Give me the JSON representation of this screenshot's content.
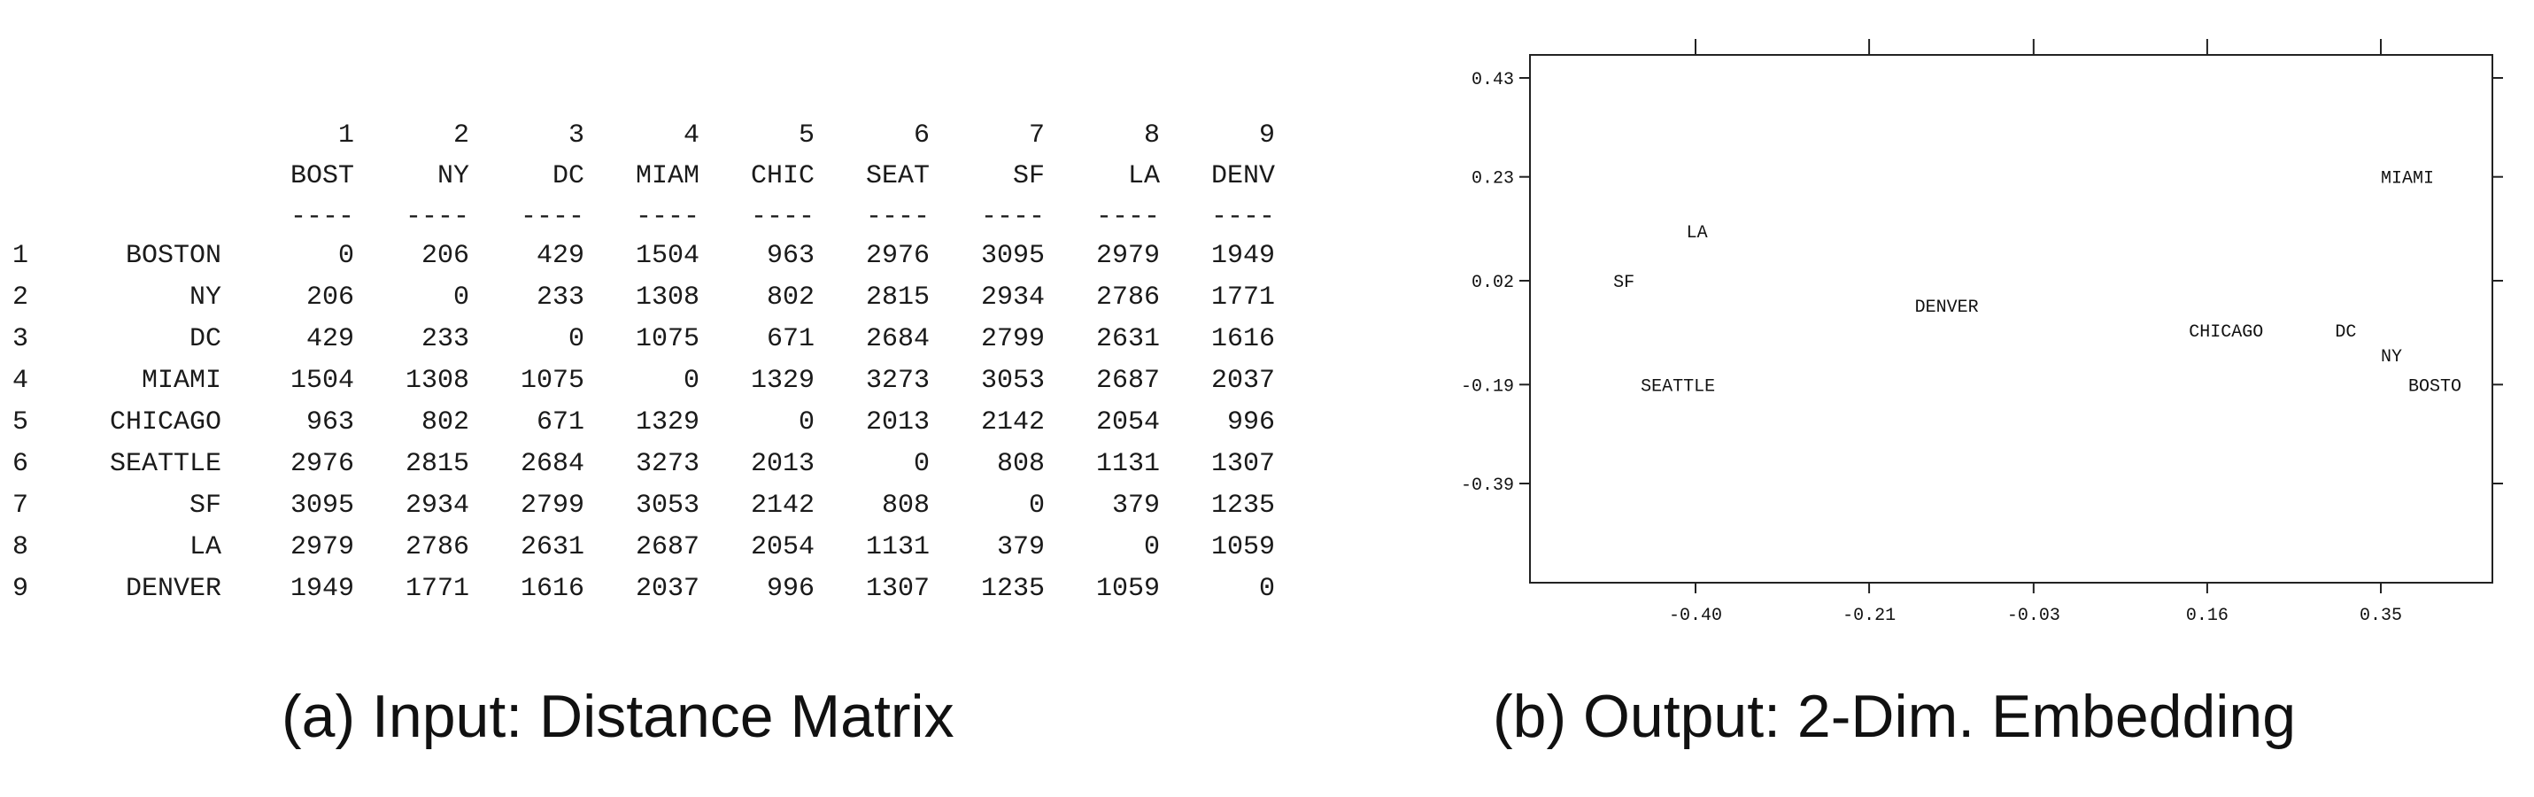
{
  "captions": {
    "a": "(a) Input: Distance Matrix",
    "b": "(b) Output: 2-Dim. Embedding"
  },
  "matrix": {
    "col_indices": [
      "1",
      "2",
      "3",
      "4",
      "5",
      "6",
      "7",
      "8",
      "9"
    ],
    "col_headers": [
      "BOST",
      "NY",
      "DC",
      "MIAM",
      "CHIC",
      "SEAT",
      "SF",
      "LA",
      "DENV"
    ],
    "dash": "----",
    "rows": [
      {
        "idx": "1",
        "label": "BOSTON",
        "values": [
          "0",
          "206",
          "429",
          "1504",
          "963",
          "2976",
          "3095",
          "2979",
          "1949"
        ]
      },
      {
        "idx": "2",
        "label": "NY",
        "values": [
          "206",
          "0",
          "233",
          "1308",
          "802",
          "2815",
          "2934",
          "2786",
          "1771"
        ]
      },
      {
        "idx": "3",
        "label": "DC",
        "values": [
          "429",
          "233",
          "0",
          "1075",
          "671",
          "2684",
          "2799",
          "2631",
          "1616"
        ]
      },
      {
        "idx": "4",
        "label": "MIAMI",
        "values": [
          "1504",
          "1308",
          "1075",
          "0",
          "1329",
          "3273",
          "3053",
          "2687",
          "2037"
        ]
      },
      {
        "idx": "5",
        "label": "CHICAGO",
        "values": [
          "963",
          "802",
          "671",
          "1329",
          "0",
          "2013",
          "2142",
          "2054",
          "996"
        ]
      },
      {
        "idx": "6",
        "label": "SEATTLE",
        "values": [
          "2976",
          "2815",
          "2684",
          "3273",
          "2013",
          "0",
          "808",
          "1131",
          "1307"
        ]
      },
      {
        "idx": "7",
        "label": "SF",
        "values": [
          "3095",
          "2934",
          "2799",
          "3053",
          "2142",
          "808",
          "0",
          "379",
          "1235"
        ]
      },
      {
        "idx": "8",
        "label": "LA",
        "values": [
          "2979",
          "2786",
          "2631",
          "2687",
          "2054",
          "1131",
          "379",
          "0",
          "1059"
        ]
      },
      {
        "idx": "9",
        "label": "DENVER",
        "values": [
          "1949",
          "1771",
          "1616",
          "2037",
          "996",
          "1307",
          "1235",
          "1059",
          "0"
        ]
      }
    ]
  },
  "chart_data": {
    "type": "scatter",
    "title": "",
    "xlabel": "",
    "ylabel": "",
    "xticks": [
      -0.4,
      -0.21,
      -0.03,
      0.16,
      0.35
    ],
    "xtick_labels": [
      "-0.40",
      "-0.21",
      "-0.03",
      "0.16",
      "0.35"
    ],
    "yticks": [
      0.43,
      0.23,
      0.02,
      -0.19,
      -0.39
    ],
    "ytick_labels": [
      "0.43",
      "0.23",
      "0.02",
      "-0.19",
      "-0.39"
    ],
    "xlim": [
      -0.72,
      0.45
    ],
    "ylim": [
      -0.6,
      0.45
    ],
    "grid": false,
    "points": [
      {
        "label": "LA",
        "x": -0.41,
        "y": 0.12
      },
      {
        "label": "SF",
        "x": -0.49,
        "y": 0.02
      },
      {
        "label": "SEATTLE",
        "x": -0.46,
        "y": -0.19
      },
      {
        "label": "DENVER",
        "x": -0.16,
        "y": -0.03
      },
      {
        "label": "CHICAGO",
        "x": 0.14,
        "y": -0.08
      },
      {
        "label": "DC",
        "x": 0.3,
        "y": -0.08
      },
      {
        "label": "NY",
        "x": 0.35,
        "y": -0.13
      },
      {
        "label": "BOSTO",
        "x": 0.38,
        "y": -0.19
      },
      {
        "label": "MIAMI",
        "x": 0.35,
        "y": 0.23
      }
    ]
  }
}
